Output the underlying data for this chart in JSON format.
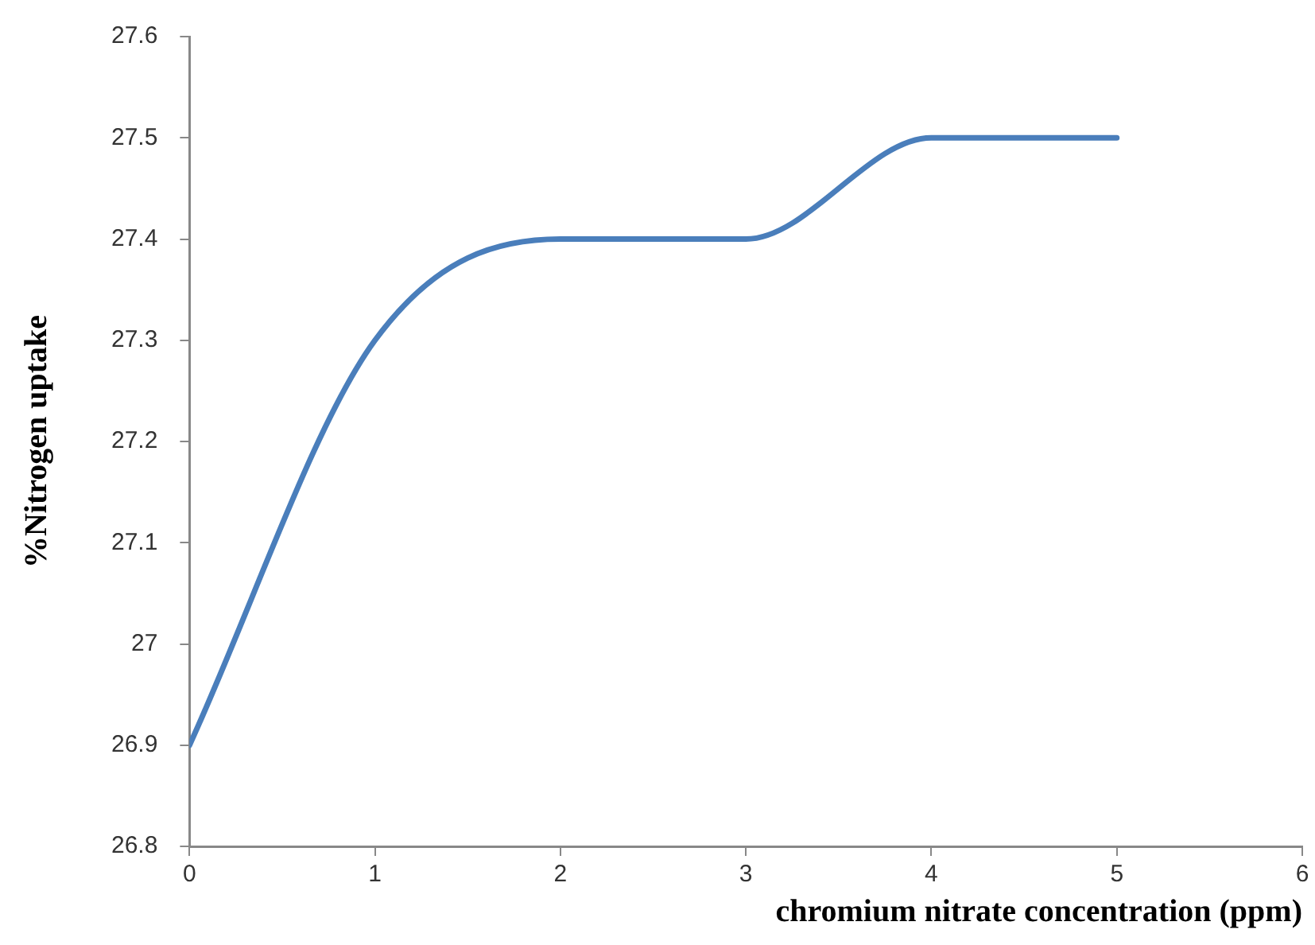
{
  "chart_data": {
    "type": "line",
    "xlabel": "chromium nitrate concentration (ppm)",
    "ylabel": "%Nitrogen uptake",
    "x": [
      0,
      1,
      2,
      3,
      4,
      5
    ],
    "series": [
      {
        "color": "#4a7ebb",
        "values": [
          26.9,
          27.3,
          27.4,
          27.4,
          27.5,
          27.5
        ]
      }
    ],
    "xlim": [
      0,
      6
    ],
    "xticks": [
      0,
      1,
      2,
      3,
      4,
      5,
      6
    ],
    "ylim": [
      26.8,
      27.6
    ],
    "yticks": [
      26.8,
      26.9,
      27,
      27.1,
      27.2,
      27.3,
      27.4,
      27.5,
      27.6
    ],
    "grid": false,
    "legend": false,
    "marker": "none",
    "line_style": "solid"
  }
}
